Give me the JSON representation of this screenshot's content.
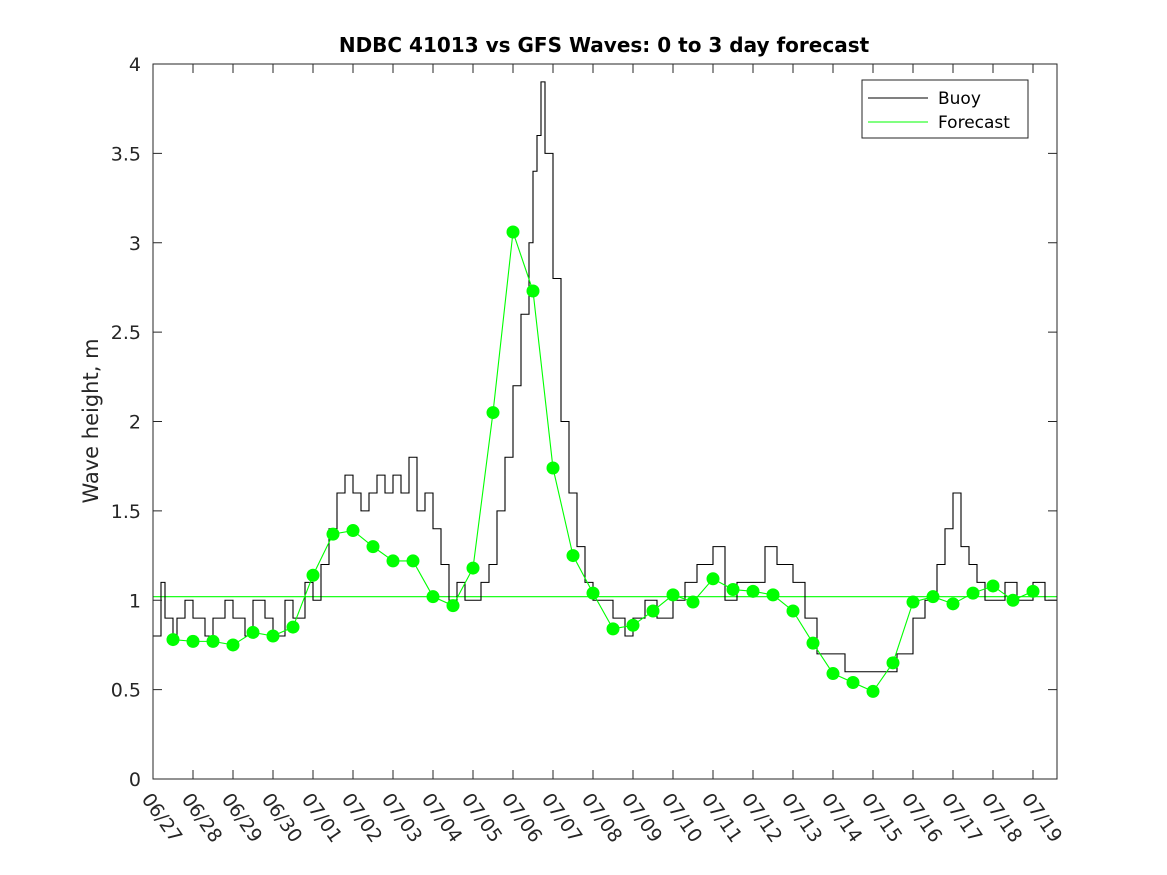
{
  "chart_data": {
    "type": "line",
    "title": "NDBC 41013 vs GFS Waves: 0 to 3 day forecast",
    "xlabel": "",
    "ylabel": "Wave height, m",
    "ylim": [
      0,
      4
    ],
    "yticks": [
      0,
      0.5,
      1,
      1.5,
      2,
      2.5,
      3,
      3.5,
      4
    ],
    "ytick_labels": [
      "0",
      "0.5",
      "1",
      "1.5",
      "2",
      "2.5",
      "3",
      "3.5",
      "4"
    ],
    "xlim": [
      0,
      22.6
    ],
    "xtick_labels": [
      "06/27",
      "06/28",
      "06/29",
      "06/30",
      "07/01",
      "07/02",
      "07/03",
      "07/04",
      "07/05",
      "07/06",
      "07/07",
      "07/08",
      "07/09",
      "07/10",
      "07/11",
      "07/12",
      "07/13",
      "07/14",
      "07/15",
      "07/16",
      "07/17",
      "07/18",
      "07/19"
    ],
    "grid": false,
    "legend_position": "top-right",
    "colors": {
      "buoy": "#000000",
      "forecast": "#00ff00",
      "axis": "#262626"
    },
    "series": [
      {
        "name": "Buoy",
        "x_days_from_0627": [
          0,
          0.2,
          0.3,
          0.5,
          0.6,
          0.8,
          1.0,
          1.3,
          1.5,
          1.8,
          2.0,
          2.3,
          2.5,
          2.8,
          3.0,
          3.3,
          3.5,
          3.8,
          4.0,
          4.2,
          4.4,
          4.6,
          4.8,
          5.0,
          5.2,
          5.4,
          5.6,
          5.8,
          6.0,
          6.2,
          6.4,
          6.6,
          6.8,
          7.0,
          7.2,
          7.4,
          7.6,
          7.8,
          8.0,
          8.2,
          8.4,
          8.6,
          8.8,
          9.0,
          9.2,
          9.4,
          9.5,
          9.6,
          9.7,
          9.8,
          10.0,
          10.2,
          10.4,
          10.6,
          10.8,
          11.0,
          11.2,
          11.5,
          11.8,
          12.0,
          12.3,
          12.6,
          13.0,
          13.3,
          13.6,
          14.0,
          14.3,
          14.6,
          15.0,
          15.3,
          15.6,
          16.0,
          16.3,
          16.6,
          17.0,
          17.3,
          17.6,
          18.0,
          18.3,
          18.6,
          19.0,
          19.3,
          19.6,
          19.8,
          20.0,
          20.2,
          20.4,
          20.6,
          20.8,
          21.0,
          21.3,
          21.6,
          22.0,
          22.3,
          22.6
        ],
        "y": [
          0.8,
          1.1,
          0.9,
          0.8,
          0.9,
          1.0,
          0.9,
          0.8,
          0.9,
          1.0,
          0.9,
          0.8,
          1.0,
          0.9,
          0.8,
          1.0,
          0.9,
          1.1,
          1.0,
          1.2,
          1.4,
          1.6,
          1.7,
          1.6,
          1.5,
          1.6,
          1.7,
          1.6,
          1.7,
          1.6,
          1.8,
          1.5,
          1.6,
          1.4,
          1.2,
          1.0,
          1.1,
          1.0,
          1.0,
          1.1,
          1.2,
          1.5,
          1.8,
          2.2,
          2.6,
          3.0,
          3.4,
          3.6,
          3.9,
          3.5,
          2.8,
          2.0,
          1.6,
          1.3,
          1.1,
          1.0,
          1.0,
          0.9,
          0.8,
          0.9,
          1.0,
          0.9,
          1.0,
          1.1,
          1.2,
          1.3,
          1.0,
          1.1,
          1.1,
          1.3,
          1.2,
          1.1,
          0.9,
          0.7,
          0.7,
          0.6,
          0.6,
          0.6,
          0.6,
          0.7,
          0.9,
          1.0,
          1.2,
          1.4,
          1.6,
          1.3,
          1.2,
          1.1,
          1.0,
          1.0,
          1.1,
          1.0,
          1.1,
          1.0,
          1.0
        ]
      },
      {
        "name": "Forecast",
        "x_days_from_0627": [
          0.5,
          1.0,
          1.5,
          2.0,
          2.5,
          3.0,
          3.5,
          4.0,
          4.5,
          5.0,
          5.5,
          6.0,
          6.5,
          7.0,
          7.5,
          8.0,
          8.5,
          9.0,
          9.5,
          10.0,
          10.5,
          11.0,
          11.5,
          12.0,
          12.5,
          13.0,
          13.5,
          14.0,
          14.5,
          15.0,
          15.5,
          16.0,
          16.5,
          17.0,
          17.5,
          18.0,
          18.5,
          19.0,
          19.5,
          20.0,
          20.5,
          21.0,
          21.5,
          22.0
        ],
        "y": [
          0.78,
          0.77,
          0.77,
          0.75,
          0.82,
          0.8,
          0.85,
          1.14,
          1.37,
          1.39,
          1.3,
          1.22,
          1.22,
          1.02,
          0.97,
          1.18,
          2.05,
          3.06,
          2.73,
          1.74,
          1.25,
          1.04,
          0.84,
          0.86,
          0.94,
          1.03,
          0.99,
          1.12,
          1.06,
          1.05,
          1.03,
          0.94,
          0.76,
          0.59,
          0.54,
          0.49,
          0.65,
          0.99,
          1.02,
          0.98,
          1.04,
          1.08,
          1.0,
          1.05
        ]
      }
    ],
    "reference_line_y": 1.02
  },
  "legend": {
    "items": [
      {
        "label": "Buoy",
        "color": "#000000"
      },
      {
        "label": "Forecast",
        "color": "#00ff00"
      }
    ]
  }
}
